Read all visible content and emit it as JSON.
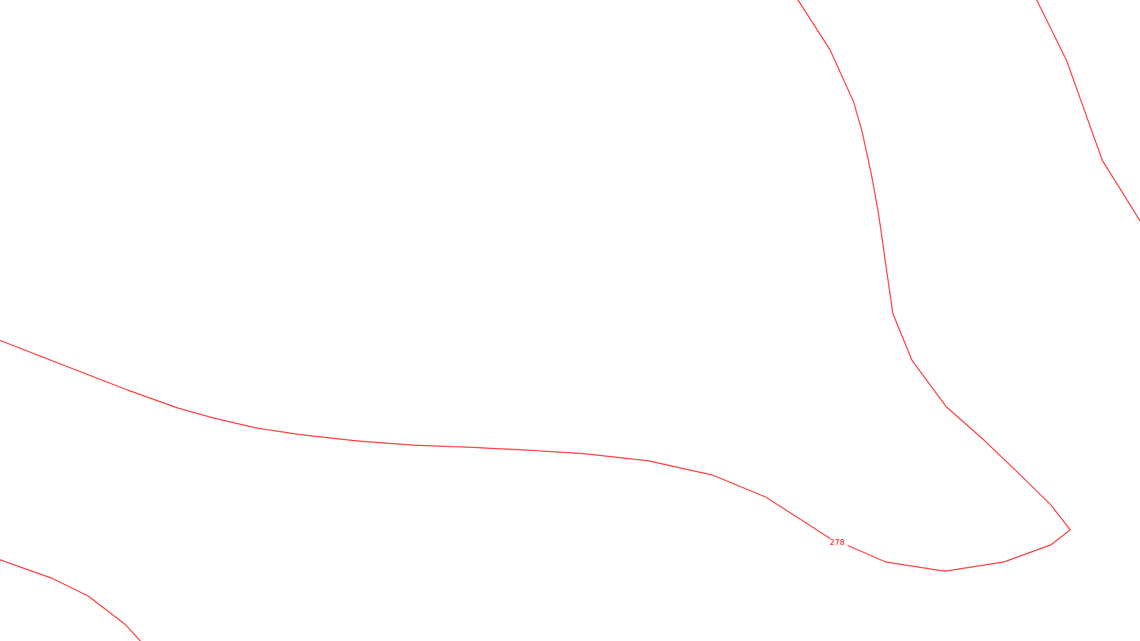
{
  "map": {
    "background_color": "#ffffff",
    "contour_color": "#ff0000",
    "contour_lines": [
      {
        "id": "contour-main",
        "label": "278"
      },
      {
        "id": "contour-right"
      },
      {
        "id": "contour-top-right"
      },
      {
        "id": "contour-bottom-left"
      }
    ]
  }
}
